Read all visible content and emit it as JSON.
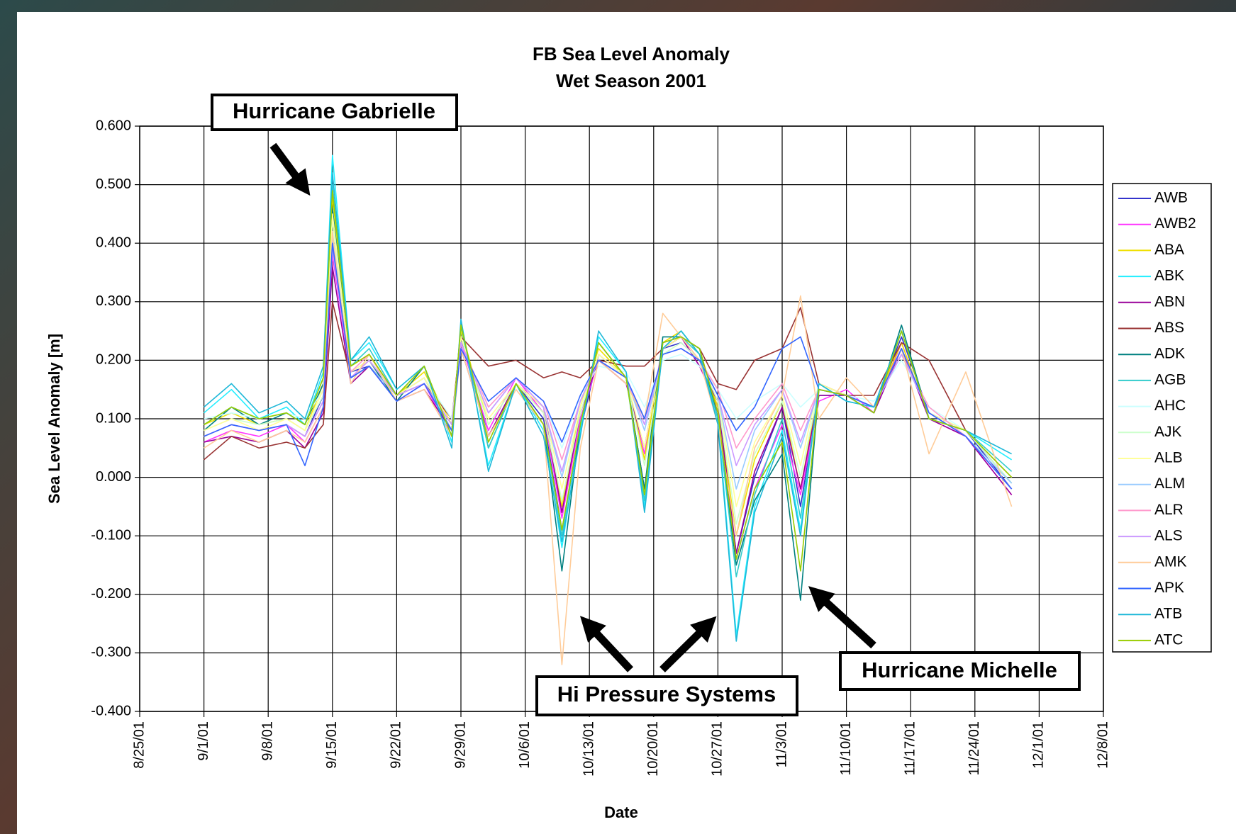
{
  "chart_data": {
    "type": "line",
    "title": "FB Sea Level Anomaly",
    "subtitle": "Wet Season 2001",
    "x_label": "Date",
    "y_label": "Sea Level Anomaly [m]",
    "annotations": [
      "Hurricane Gabrielle",
      "Hi Pressure Systems",
      "Hurricane Michelle"
    ],
    "xlim": [
      "8/25/01",
      "12/8/01"
    ],
    "xticks": [
      "8/25/01",
      "9/1/01",
      "9/8/01",
      "9/15/01",
      "9/22/01",
      "9/29/01",
      "10/6/01",
      "10/13/01",
      "10/20/01",
      "10/27/01",
      "11/3/01",
      "11/10/01",
      "11/17/01",
      "11/24/01",
      "12/1/01",
      "12/8/01"
    ],
    "ylim": [
      -0.4,
      0.6
    ],
    "yticks": [
      {
        "value": -0.4,
        "label": "-0.400"
      },
      {
        "value": -0.3,
        "label": "-0.300"
      },
      {
        "value": -0.2,
        "label": "-0.200"
      },
      {
        "value": -0.1,
        "label": "-0.100"
      },
      {
        "value": 0,
        "label": "0.000"
      },
      {
        "value": 0.1,
        "label": "0.100"
      },
      {
        "value": 0.2,
        "label": "0.200"
      },
      {
        "value": 0.3,
        "label": "0.300"
      },
      {
        "value": 0.4,
        "label": "0.400"
      },
      {
        "value": 0.5,
        "label": "0.500"
      },
      {
        "value": 0.6,
        "label": "0.600"
      }
    ],
    "grid": true,
    "legend": "right",
    "x": [
      "9/1/01",
      "9/4/01",
      "9/7/01",
      "9/10/01",
      "9/12/01",
      "9/14/01",
      "9/15/01",
      "9/17/01",
      "9/19/01",
      "9/22/01",
      "9/25/01",
      "9/28/01",
      "9/29/01",
      "10/2/01",
      "10/5/01",
      "10/8/01",
      "10/10/01",
      "10/12/01",
      "10/14/01",
      "10/17/01",
      "10/19/01",
      "10/21/01",
      "10/23/01",
      "10/25/01",
      "10/27/01",
      "10/29/01",
      "10/31/01",
      "11/3/01",
      "11/5/01",
      "11/7/01",
      "11/10/01",
      "11/13/01",
      "11/16/01",
      "11/19/01",
      "11/23/01",
      "11/28/01"
    ],
    "series": [
      {
        "name": "AWB",
        "color": "#3333cc",
        "values": [
          0.07,
          0.09,
          0.08,
          0.09,
          0.07,
          0.14,
          0.4,
          0.18,
          0.19,
          0.14,
          0.17,
          0.08,
          0.24,
          0.07,
          0.16,
          0.1,
          -0.09,
          0.08,
          0.21,
          0.17,
          -0.02,
          0.22,
          0.23,
          0.2,
          0.11,
          -0.13,
          0.0,
          0.12,
          -0.05,
          0.14,
          0.14,
          0.12,
          0.24,
          0.11,
          0.08,
          -0.02
        ]
      },
      {
        "name": "AWB2",
        "color": "#ff33ff",
        "values": [
          0.06,
          0.08,
          0.07,
          0.09,
          0.06,
          0.12,
          0.38,
          0.17,
          0.2,
          0.13,
          0.16,
          0.07,
          0.23,
          0.08,
          0.17,
          0.11,
          -0.07,
          0.1,
          0.2,
          0.16,
          0.04,
          0.23,
          0.24,
          0.19,
          0.12,
          -0.14,
          -0.02,
          0.09,
          -0.03,
          0.13,
          0.15,
          0.11,
          0.23,
          0.1,
          0.07,
          -0.03
        ]
      },
      {
        "name": "ABA",
        "color": "#f0e000",
        "values": [
          0.09,
          0.11,
          0.09,
          0.1,
          0.08,
          0.16,
          0.48,
          0.19,
          0.21,
          0.14,
          0.18,
          0.09,
          0.25,
          0.09,
          0.16,
          0.11,
          -0.05,
          0.12,
          0.22,
          0.17,
          0.03,
          0.23,
          0.25,
          0.21,
          0.12,
          -0.1,
          0.03,
          0.13,
          -0.02,
          0.15,
          0.14,
          0.12,
          0.23,
          0.1,
          0.08,
          0.0
        ]
      },
      {
        "name": "ABK",
        "color": "#22eeff",
        "values": [
          0.11,
          0.15,
          0.1,
          0.12,
          0.09,
          0.18,
          0.55,
          0.2,
          0.23,
          0.15,
          0.19,
          0.06,
          0.26,
          0.02,
          0.16,
          0.08,
          -0.12,
          0.08,
          0.24,
          0.18,
          -0.05,
          0.22,
          0.25,
          0.21,
          0.1,
          -0.27,
          -0.05,
          0.08,
          -0.09,
          0.16,
          0.13,
          0.12,
          0.25,
          0.1,
          0.08,
          0.03
        ]
      },
      {
        "name": "ABN",
        "color": "#990099",
        "values": [
          0.06,
          0.07,
          0.06,
          0.08,
          0.05,
          0.11,
          0.36,
          0.16,
          0.19,
          0.13,
          0.15,
          0.08,
          0.22,
          0.07,
          0.16,
          0.12,
          -0.06,
          0.11,
          0.2,
          0.16,
          0.05,
          0.22,
          0.24,
          0.19,
          0.13,
          -0.13,
          0.01,
          0.12,
          -0.02,
          0.14,
          0.14,
          0.11,
          0.22,
          0.1,
          0.07,
          -0.03
        ]
      },
      {
        "name": "ABS",
        "color": "#993333",
        "values": [
          0.03,
          0.07,
          0.05,
          0.06,
          0.05,
          0.09,
          0.3,
          0.17,
          0.19,
          0.14,
          0.16,
          0.1,
          0.24,
          0.19,
          0.2,
          0.17,
          0.18,
          0.17,
          0.2,
          0.19,
          0.19,
          0.22,
          0.24,
          0.22,
          0.16,
          0.15,
          0.2,
          0.22,
          0.29,
          0.16,
          0.14,
          0.14,
          0.23,
          0.2,
          0.08,
          0.0
        ]
      },
      {
        "name": "ADK",
        "color": "#008080",
        "values": [
          0.08,
          0.12,
          0.09,
          0.11,
          0.09,
          0.16,
          0.46,
          0.18,
          0.2,
          0.13,
          0.19,
          0.07,
          0.26,
          0.05,
          0.16,
          0.09,
          -0.16,
          0.09,
          0.23,
          0.17,
          -0.02,
          0.24,
          0.24,
          0.22,
          0.1,
          -0.15,
          -0.04,
          0.04,
          -0.21,
          0.15,
          0.14,
          0.11,
          0.26,
          0.1,
          0.08,
          -0.01
        ]
      },
      {
        "name": "AGB",
        "color": "#33cccc",
        "values": [
          0.09,
          0.12,
          0.1,
          0.11,
          0.09,
          0.17,
          0.5,
          0.19,
          0.22,
          0.14,
          0.19,
          0.07,
          0.26,
          0.05,
          0.16,
          0.09,
          -0.1,
          0.09,
          0.23,
          0.17,
          -0.04,
          0.23,
          0.24,
          0.21,
          0.1,
          -0.17,
          -0.03,
          0.1,
          -0.07,
          0.15,
          0.14,
          0.12,
          0.25,
          0.1,
          0.08,
          0.01
        ]
      },
      {
        "name": "AHC",
        "color": "#ccffff",
        "values": [
          0.1,
          0.11,
          0.1,
          0.11,
          0.1,
          0.15,
          0.42,
          0.18,
          0.2,
          0.14,
          0.17,
          0.1,
          0.23,
          0.12,
          0.17,
          0.13,
          0.05,
          0.14,
          0.19,
          0.18,
          0.12,
          0.2,
          0.21,
          0.19,
          0.15,
          0.1,
          0.13,
          0.16,
          0.12,
          0.15,
          0.14,
          0.13,
          0.2,
          0.12,
          0.08,
          0.0
        ]
      },
      {
        "name": "AJK",
        "color": "#ccffcc",
        "values": [
          0.08,
          0.1,
          0.09,
          0.1,
          0.08,
          0.14,
          0.44,
          0.18,
          0.2,
          0.14,
          0.17,
          0.08,
          0.24,
          0.09,
          0.16,
          0.11,
          -0.04,
          0.11,
          0.21,
          0.17,
          0.02,
          0.21,
          0.23,
          0.2,
          0.13,
          -0.08,
          0.04,
          0.13,
          0.0,
          0.15,
          0.14,
          0.12,
          0.22,
          0.11,
          0.08,
          -0.01
        ]
      },
      {
        "name": "ALB",
        "color": "#ffff99",
        "values": [
          0.08,
          0.1,
          0.08,
          0.1,
          0.08,
          0.15,
          0.45,
          0.18,
          0.2,
          0.14,
          0.17,
          0.09,
          0.24,
          0.1,
          0.16,
          0.12,
          -0.02,
          0.12,
          0.21,
          0.17,
          0.05,
          0.22,
          0.24,
          0.2,
          0.14,
          -0.05,
          0.06,
          0.14,
          0.02,
          0.16,
          0.14,
          0.12,
          0.22,
          0.11,
          0.08,
          0.0
        ]
      },
      {
        "name": "ALM",
        "color": "#99ccff",
        "values": [
          0.07,
          0.09,
          0.08,
          0.09,
          0.07,
          0.13,
          0.41,
          0.17,
          0.19,
          0.14,
          0.16,
          0.09,
          0.23,
          0.11,
          0.17,
          0.12,
          0.0,
          0.13,
          0.2,
          0.17,
          0.08,
          0.21,
          0.22,
          0.2,
          0.14,
          -0.02,
          0.08,
          0.15,
          0.05,
          0.15,
          0.14,
          0.12,
          0.21,
          0.11,
          0.07,
          -0.01
        ]
      },
      {
        "name": "ALR",
        "color": "#ff99cc",
        "values": [
          0.07,
          0.09,
          0.08,
          0.09,
          0.07,
          0.13,
          0.4,
          0.18,
          0.21,
          0.14,
          0.16,
          0.09,
          0.23,
          0.12,
          0.17,
          0.13,
          0.03,
          0.13,
          0.2,
          0.17,
          0.1,
          0.21,
          0.22,
          0.2,
          0.15,
          0.05,
          0.1,
          0.16,
          0.08,
          0.15,
          0.14,
          0.12,
          0.21,
          0.12,
          0.07,
          -0.02
        ]
      },
      {
        "name": "ALS",
        "color": "#cc99ff",
        "values": [
          0.07,
          0.09,
          0.08,
          0.09,
          0.07,
          0.13,
          0.39,
          0.17,
          0.2,
          0.14,
          0.16,
          0.09,
          0.23,
          0.11,
          0.17,
          0.12,
          0.01,
          0.13,
          0.2,
          0.17,
          0.09,
          0.21,
          0.22,
          0.2,
          0.14,
          0.02,
          0.09,
          0.15,
          0.06,
          0.15,
          0.14,
          0.12,
          0.21,
          0.11,
          0.07,
          -0.02
        ]
      },
      {
        "name": "AMK",
        "color": "#ffcc99",
        "values": [
          0.05,
          0.08,
          0.06,
          0.08,
          0.06,
          0.12,
          0.42,
          0.16,
          0.21,
          0.13,
          0.15,
          0.07,
          0.22,
          0.07,
          0.15,
          0.09,
          -0.32,
          0.05,
          0.2,
          0.16,
          0.1,
          0.28,
          0.24,
          0.2,
          0.09,
          -0.1,
          0.05,
          0.14,
          0.31,
          0.1,
          0.17,
          0.12,
          0.22,
          0.04,
          0.18,
          -0.05
        ]
      },
      {
        "name": "APK",
        "color": "#3366ff",
        "values": [
          0.07,
          0.09,
          0.08,
          0.09,
          0.02,
          0.12,
          0.4,
          0.17,
          0.19,
          0.13,
          0.16,
          0.08,
          0.22,
          0.13,
          0.17,
          0.13,
          0.06,
          0.14,
          0.2,
          0.17,
          0.1,
          0.21,
          0.22,
          0.2,
          0.14,
          0.08,
          0.12,
          0.22,
          0.24,
          0.15,
          0.14,
          0.12,
          0.22,
          0.11,
          0.07,
          -0.02
        ]
      },
      {
        "name": "ATB",
        "color": "#1fb8d8",
        "values": [
          0.12,
          0.16,
          0.11,
          0.13,
          0.1,
          0.19,
          0.52,
          0.2,
          0.24,
          0.15,
          0.19,
          0.05,
          0.27,
          0.01,
          0.16,
          0.07,
          -0.11,
          0.07,
          0.25,
          0.18,
          -0.06,
          0.22,
          0.25,
          0.21,
          0.09,
          -0.28,
          -0.06,
          0.07,
          -0.1,
          0.16,
          0.13,
          0.12,
          0.25,
          0.1,
          0.08,
          0.04
        ]
      },
      {
        "name": "ATC",
        "color": "#99cc00",
        "values": [
          0.09,
          0.12,
          0.1,
          0.11,
          0.09,
          0.17,
          0.49,
          0.19,
          0.21,
          0.14,
          0.19,
          0.07,
          0.26,
          0.06,
          0.16,
          0.09,
          -0.09,
          0.09,
          0.23,
          0.17,
          -0.03,
          0.23,
          0.24,
          0.22,
          0.11,
          -0.14,
          -0.02,
          0.06,
          -0.16,
          0.15,
          0.14,
          0.11,
          0.25,
          0.1,
          0.08,
          0.0
        ]
      }
    ]
  }
}
